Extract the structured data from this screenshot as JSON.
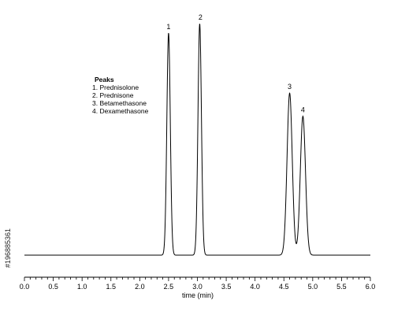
{
  "chart_data": {
    "type": "line",
    "xlabel": "time (min)",
    "ylabel": "",
    "xlim": [
      0.0,
      6.0
    ],
    "ylim": [
      0,
      1
    ],
    "x_ticks": [
      "0.0",
      "0.5",
      "1.0",
      "1.5",
      "2.0",
      "2.5",
      "3.0",
      "3.5",
      "4.0",
      "4.5",
      "5.0",
      "5.5",
      "6.0"
    ],
    "grid": false,
    "baseline": 0.0,
    "peaks": [
      {
        "label": "1",
        "x": 2.5,
        "y": 0.96,
        "width": 0.03
      },
      {
        "label": "2",
        "x": 3.04,
        "y": 1.0,
        "width": 0.03
      },
      {
        "label": "3",
        "x": 4.6,
        "y": 0.7,
        "width": 0.045
      },
      {
        "label": "4",
        "x": 4.83,
        "y": 0.6,
        "width": 0.045
      }
    ],
    "legend": {
      "title": "Peaks",
      "placement": "top-left",
      "items": [
        "1. Prednisolone",
        "2. Prednisone",
        "3. Betamethasone",
        "4. Dexamethasone"
      ]
    }
  },
  "watermark": {
    "id_text": "#196885361"
  }
}
